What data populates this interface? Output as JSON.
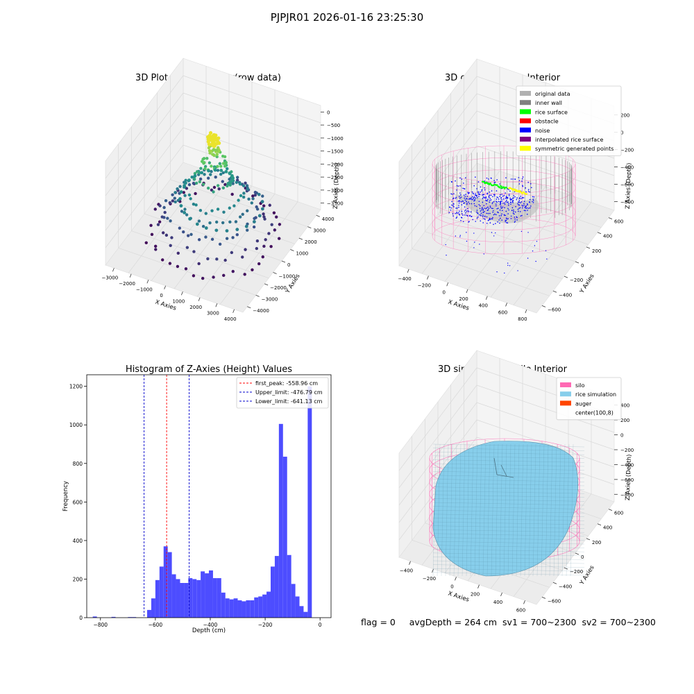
{
  "suptitle": "PJPJR01 2026-01-16 23:25:30",
  "colors": {
    "hist_bar": "#4d4dff",
    "first_peak_line": "#ff0000",
    "limit_line": "#0000cc",
    "pane": "#f2f2f2",
    "grid": "#d9d9d9",
    "silo": "#ff69b4",
    "rice": "#87ceeb",
    "auger": "#ff4500",
    "inner_wall": "#808080",
    "original": "#b0b0b0",
    "rice_surface": "#00ff00",
    "obstacle": "#ff0000",
    "noise": "#0000ff",
    "interpolated": "#800080",
    "symmetric": "#ffff00"
  },
  "chart_data": [
    {
      "type": "scatter",
      "projection": "3d",
      "title": "3D Plot of Silo Interior(row data)",
      "xlabel": "X Axies",
      "ylabel": "Y Axies",
      "zlabel": "Z Axies (Depth)",
      "xticks": [
        "−3000",
        "−2000",
        "−1000",
        "0",
        "1000",
        "2000",
        "3000",
        "4000"
      ],
      "yticks": [
        "4000",
        "3000",
        "2000",
        "1000",
        "0",
        "−1000",
        "−2000",
        "−3000",
        "−4000"
      ],
      "zticks": [
        "0",
        "−500",
        "−1000",
        "−1500",
        "−2000",
        "−2500",
        "−3000",
        "−3500"
      ],
      "xlim": [
        -3400,
        4300
      ],
      "ylim": [
        -4200,
        4200
      ],
      "zlim": [
        -3700,
        0
      ],
      "colormap": "viridis",
      "grid": true
    },
    {
      "type": "scatter",
      "projection": "3d",
      "title": "3D classify of Silo Interior",
      "xlabel": "X Axies",
      "ylabel": "Y Axies",
      "zlabel": "Z Axies (Depth)",
      "xticks": [
        "−400",
        "−200",
        "0",
        "200",
        "400",
        "600",
        "800"
      ],
      "yticks": [
        "600",
        "400",
        "200",
        "0",
        "−200",
        "−400",
        "−600"
      ],
      "zticks": [
        "200",
        "0",
        "−200",
        "−400",
        "−600",
        "−800"
      ],
      "legend_position": "top-right",
      "legend": [
        {
          "label": "original data",
          "color": "#b0b0b0"
        },
        {
          "label": "inner wall",
          "color": "#808080"
        },
        {
          "label": "rice surface",
          "color": "#00ff00"
        },
        {
          "label": "obstacle",
          "color": "#ff0000"
        },
        {
          "label": "noise",
          "color": "#0000ff"
        },
        {
          "label": "interpolated rice surface",
          "color": "#800080"
        },
        {
          "label": "symmetric generated points",
          "color": "#ffff00"
        }
      ],
      "grid": true
    },
    {
      "type": "bar",
      "title": "Histogram of Z-Axies (Height) Values",
      "xlabel": "Depth (cm)",
      "ylabel": "Frequency",
      "xlim": [
        -850,
        40
      ],
      "ylim": [
        0,
        1260
      ],
      "xticks": [
        -800,
        -600,
        -400,
        -200,
        0
      ],
      "xtick_labels": [
        "−800",
        "−600",
        "−400",
        "−200",
        "0"
      ],
      "yticks": [
        0,
        200,
        400,
        600,
        800,
        1000,
        1200
      ],
      "bin_width": 15,
      "bins": [
        [
          -828,
          6
        ],
        [
          -760,
          4
        ],
        [
          -700,
          3
        ],
        [
          -685,
          3
        ],
        [
          -630,
          40
        ],
        [
          -615,
          100
        ],
        [
          -600,
          195
        ],
        [
          -585,
          265
        ],
        [
          -570,
          370
        ],
        [
          -555,
          340
        ],
        [
          -540,
          225
        ],
        [
          -525,
          200
        ],
        [
          -510,
          180
        ],
        [
          -495,
          180
        ],
        [
          -480,
          205
        ],
        [
          -465,
          200
        ],
        [
          -450,
          195
        ],
        [
          -435,
          240
        ],
        [
          -420,
          230
        ],
        [
          -405,
          245
        ],
        [
          -390,
          205
        ],
        [
          -375,
          205
        ],
        [
          -360,
          130
        ],
        [
          -345,
          100
        ],
        [
          -330,
          95
        ],
        [
          -315,
          100
        ],
        [
          -300,
          90
        ],
        [
          -285,
          85
        ],
        [
          -270,
          90
        ],
        [
          -255,
          90
        ],
        [
          -240,
          105
        ],
        [
          -225,
          110
        ],
        [
          -210,
          120
        ],
        [
          -195,
          135
        ],
        [
          -180,
          265
        ],
        [
          -165,
          320
        ],
        [
          -150,
          1005
        ],
        [
          -135,
          835
        ],
        [
          -120,
          325
        ],
        [
          -105,
          175
        ],
        [
          -90,
          110
        ],
        [
          -75,
          60
        ],
        [
          -60,
          30
        ],
        [
          -45,
          1200
        ]
      ],
      "vlines": [
        {
          "label": "first_peak: -558.96 cm",
          "x": -558.96,
          "color": "#ff0000"
        },
        {
          "label": "Upper_limit: -476.79 cm",
          "x": -476.79,
          "color": "#0000cc"
        },
        {
          "label": "Lower_limit: -641.13 cm",
          "x": -641.13,
          "color": "#0000cc"
        }
      ],
      "legend_position": "top-right",
      "grid": false
    },
    {
      "type": "surface",
      "projection": "3d",
      "title": "3D simulation of Silo Interior",
      "xlabel": "X Axies",
      "ylabel": "Y Axies",
      "zlabel": "Z Axies (Depth)",
      "xticks": [
        "−400",
        "−200",
        "0",
        "200",
        "400",
        "600"
      ],
      "yticks": [
        "600",
        "400",
        "200",
        "0",
        "−200",
        "−400",
        "−600"
      ],
      "zticks": [
        "400",
        "200",
        "0",
        "−200",
        "−400",
        "−600",
        "−800"
      ],
      "legend_position": "top-right",
      "legend": [
        {
          "label": "silo",
          "color": "#ff69b4"
        },
        {
          "label": "rice simulation",
          "color": "#87ceeb"
        },
        {
          "label": "auger",
          "color": "#ff4500"
        },
        {
          "label": "center(100,8)",
          "color": ""
        }
      ],
      "grid": true
    }
  ],
  "footer": {
    "flag": "flag = 0",
    "avg": "avgDepth = 264 cm",
    "sv1": "sv1 = 700~2300",
    "sv2": "sv2 = 700~2300"
  }
}
